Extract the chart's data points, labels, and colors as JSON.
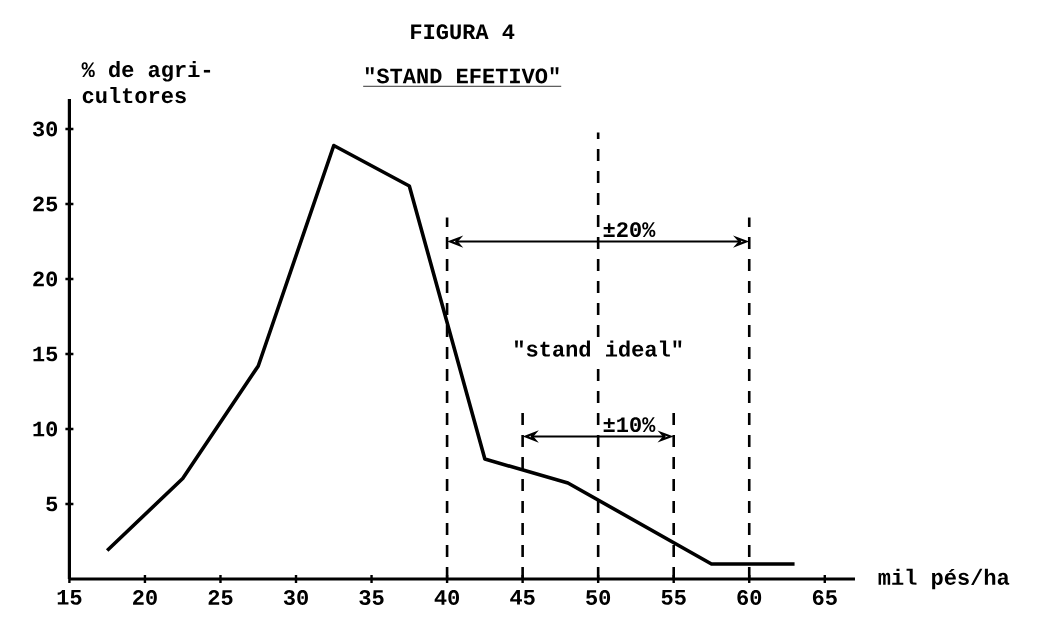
{
  "chart_data": {
    "type": "line",
    "title": "FIGURA 4",
    "subtitle": "\"STAND EFETIVO\"",
    "xlabel": "mil pés/ha",
    "ylabel": "% de agri-cultores",
    "x": [
      17.5,
      22.5,
      27.5,
      32.5,
      37.5,
      42.5,
      48,
      57.5,
      63
    ],
    "series": [
      {
        "color": "#000000",
        "values": [
          1.9,
          6.7,
          14.2,
          28.9,
          26.2,
          8.0,
          6.4,
          1.0,
          1.0
        ]
      }
    ],
    "annotations": [
      {
        "text": "±20%",
        "x": 50,
        "y": 22.5
      },
      {
        "text": "±10%",
        "x": 50,
        "y": 9.5
      }
    ],
    "marker": "none",
    "line_style": "solid",
    "xlim": [
      15,
      67
    ],
    "ylim": [
      0,
      32
    ],
    "xticks": [
      15,
      20,
      25,
      30,
      35,
      40,
      45,
      50,
      55,
      60,
      65
    ],
    "yticks": [
      5,
      10,
      15,
      20,
      25,
      30
    ],
    "ref_lines": [
      {
        "axis": "x",
        "value": 40,
        "label": null,
        "line_style": "dashed"
      },
      {
        "axis": "x",
        "value": 45,
        "label": null,
        "line_style": "dashed"
      },
      {
        "axis": "x",
        "value": 50,
        "label": "\"stand ideal\"",
        "line_style": "dashed"
      },
      {
        "axis": "x",
        "value": 55,
        "label": null,
        "line_style": "dashed"
      },
      {
        "axis": "x",
        "value": 60,
        "label": null,
        "line_style": "dashed"
      }
    ]
  }
}
